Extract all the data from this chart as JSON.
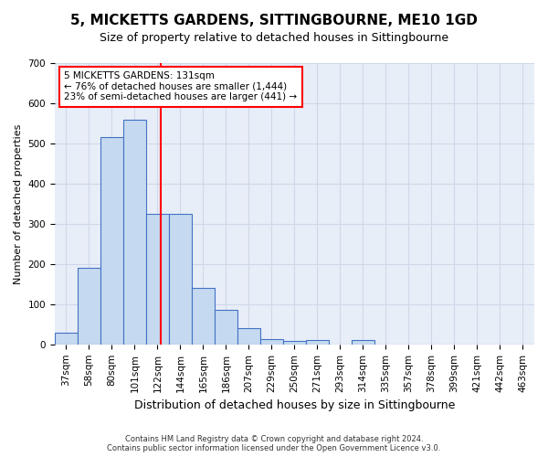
{
  "title": "5, MICKETTS GARDENS, SITTINGBOURNE, ME10 1GD",
  "subtitle": "Size of property relative to detached houses in Sittingbourne",
  "xlabel": "Distribution of detached houses by size in Sittingbourne",
  "ylabel": "Number of detached properties",
  "footer": "Contains HM Land Registry data © Crown copyright and database right 2024.\nContains public sector information licensed under the Open Government Licence v3.0.",
  "categories": [
    "37sqm",
    "58sqm",
    "80sqm",
    "101sqm",
    "122sqm",
    "144sqm",
    "165sqm",
    "186sqm",
    "207sqm",
    "229sqm",
    "250sqm",
    "271sqm",
    "293sqm",
    "314sqm",
    "335sqm",
    "357sqm",
    "378sqm",
    "399sqm",
    "421sqm",
    "442sqm",
    "463sqm"
  ],
  "values": [
    30,
    190,
    515,
    560,
    325,
    325,
    140,
    85,
    40,
    13,
    9,
    10,
    0,
    10,
    0,
    0,
    0,
    0,
    0,
    0,
    0
  ],
  "bar_color": "#c5d9f0",
  "bar_edge_color": "#4472c4",
  "bar_edge_width": 0.8,
  "red_line_x": 4.15,
  "annotation_text": "5 MICKETTS GARDENS: 131sqm\n← 76% of detached houses are smaller (1,444)\n23% of semi-detached houses are larger (441) →",
  "annotation_box_color": "white",
  "annotation_box_edge_color": "red",
  "grid_color": "#d0d8e8",
  "background_color": "#e8eef8",
  "ylim": [
    0,
    700
  ],
  "yticks": [
    0,
    100,
    200,
    300,
    400,
    500,
    600,
    700
  ],
  "title_fontsize": 11,
  "subtitle_fontsize": 9,
  "xlabel_fontsize": 9,
  "ylabel_fontsize": 8,
  "tick_fontsize": 7.5,
  "annotation_fontsize": 7.5,
  "footer_fontsize": 6
}
